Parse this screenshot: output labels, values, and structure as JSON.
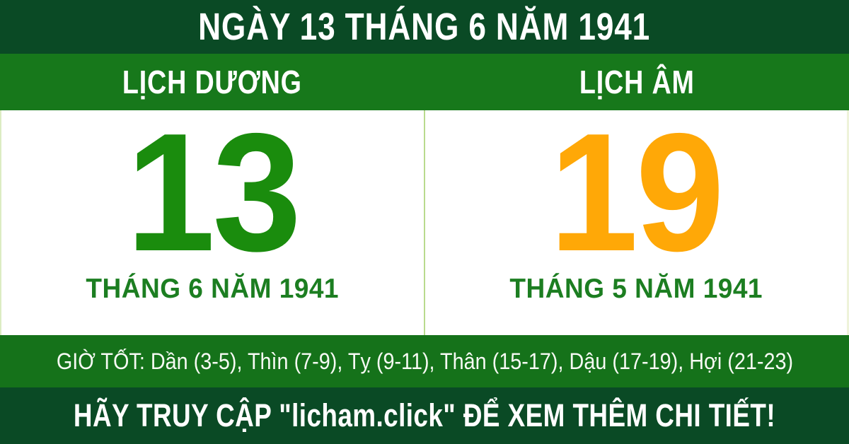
{
  "header": {
    "title": "NGÀY 13 THÁNG 6 NĂM 1941"
  },
  "band": {
    "solar_label": "LỊCH DƯƠNG",
    "lunar_label": "LỊCH ÂM"
  },
  "solar": {
    "day": "13",
    "month_year": "THÁNG 6 NĂM 1941"
  },
  "lunar": {
    "day": "19",
    "month_year": "THÁNG 5 NĂM 1941"
  },
  "good_hours": {
    "text": "GIỜ TỐT: Dần (3-5), Thìn (7-9), Tỵ (9-11), Thân (15-17), Dậu (17-19), Hợi (21-23)"
  },
  "footer": {
    "cta": "HÃY TRUY CẬP \"licham.click\" ĐỂ XEM THÊM CHI TIẾT!",
    "site": "licham.click"
  },
  "colors": {
    "dark_green": "#0a4a25",
    "band_green": "#17781b",
    "hours_band_green": "#15721a",
    "solar_day_green": "#1a8c0d",
    "lunar_day_orange": "#ffa807",
    "month_label_green": "#1c7e21",
    "divider_light_green": "#b9da8e",
    "panel_white": "#ffffff",
    "text_white": "#ffffff"
  }
}
